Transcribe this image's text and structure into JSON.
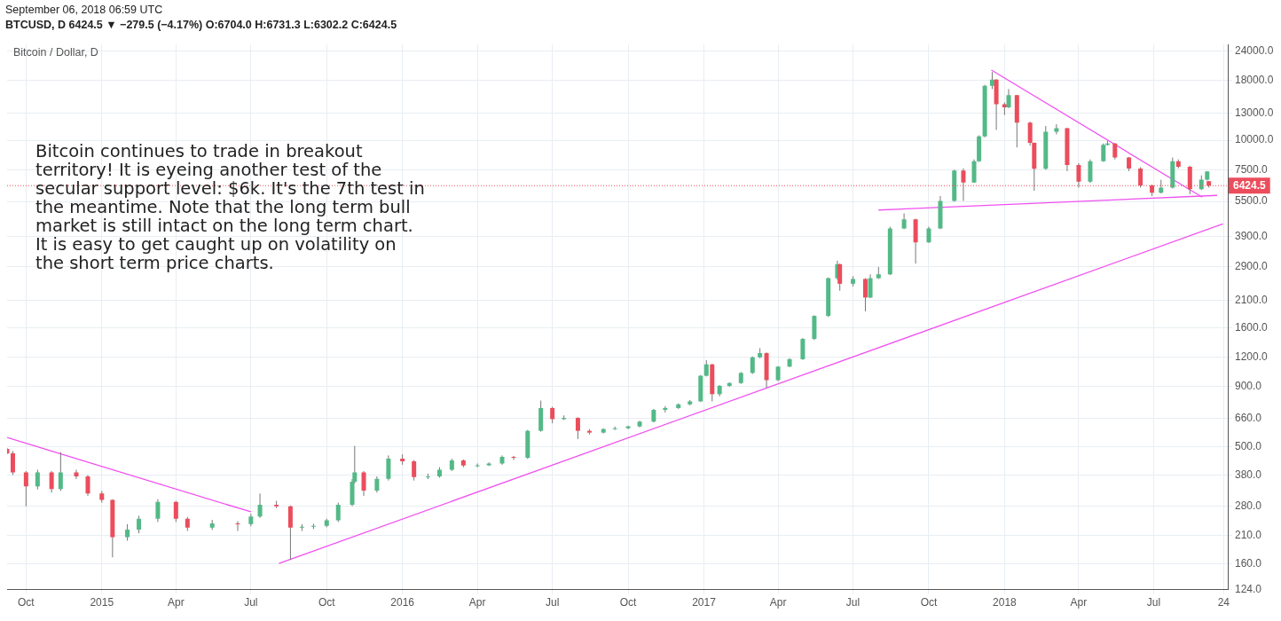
{
  "chart_data": {
    "type": "candlestick",
    "title": "Bitcoin / Dollar, D",
    "subtitle": "September 06, 2018 06:59 UTC",
    "annotations": [
      "BTCUSD, D  6424.5 ▼ −279.5 (−4.17%) O:6704.0 H:6731.3 L:6302.2 C:6424.5",
      "Bitcoin continues to trade in breakout territory! It is eyeing another test of the secular support level: $6k. It's the 7th test in the meantime. Note that the long term bull market is still intact on the long term chart. It is easy to get caught up on volatility on the short term price charts."
    ],
    "log": "y",
    "grid": true,
    "legend": false,
    "xlim": [
      "2014-09-08",
      "2018-09-29"
    ],
    "xticks": [
      {
        "value": "2014-10-01",
        "label": "Oct"
      },
      {
        "value": "2015-01-01",
        "label": "2015"
      },
      {
        "value": "2015-04-01",
        "label": "Apr"
      },
      {
        "value": "2015-07-01",
        "label": "Jul"
      },
      {
        "value": "2015-10-01",
        "label": "Oct"
      },
      {
        "value": "2016-01-01",
        "label": "2016"
      },
      {
        "value": "2016-04-01",
        "label": "Apr"
      },
      {
        "value": "2016-07-01",
        "label": "Jul"
      },
      {
        "value": "2016-10-01",
        "label": "Oct"
      },
      {
        "value": "2017-01-01",
        "label": "2017"
      },
      {
        "value": "2017-04-01",
        "label": "Apr"
      },
      {
        "value": "2017-07-01",
        "label": "Jul"
      },
      {
        "value": "2017-10-01",
        "label": "Oct"
      },
      {
        "value": "2018-01-01",
        "label": "2018"
      },
      {
        "value": "2018-04-01",
        "label": "Apr"
      },
      {
        "value": "2018-07-01",
        "label": "Jul"
      },
      {
        "value": "2018-09-24",
        "label": "24"
      }
    ],
    "ylim": [
      124,
      25500
    ],
    "yticks": [
      {
        "value": 124,
        "label": "124.0"
      },
      {
        "value": 160,
        "label": "160.0"
      },
      {
        "value": 210,
        "label": "210.0"
      },
      {
        "value": 280,
        "label": "280.0"
      },
      {
        "value": 380,
        "label": "380.0"
      },
      {
        "value": 500,
        "label": "500.0"
      },
      {
        "value": 660,
        "label": "660.0"
      },
      {
        "value": 900,
        "label": "900.0"
      },
      {
        "value": 1200,
        "label": "1200.0"
      },
      {
        "value": 1600,
        "label": "1600.0"
      },
      {
        "value": 2100,
        "label": "2100.0"
      },
      {
        "value": 2900,
        "label": "2900.0"
      },
      {
        "value": 3900,
        "label": "3900.0"
      },
      {
        "value": 5500,
        "label": "5500.0"
      },
      {
        "value": 7500,
        "label": "7500.0"
      },
      {
        "value": 10000,
        "label": "10000.0"
      },
      {
        "value": 13000,
        "label": "13000.0"
      },
      {
        "value": 18000,
        "label": "18000.0"
      },
      {
        "value": 24000,
        "label": "24000.0"
      }
    ],
    "ref_lines": [
      {
        "axis": "y",
        "value": 6424.5,
        "label": "6424.5",
        "color": "#eb4d5c",
        "line_style": "dotted"
      }
    ],
    "x": [
      "2014-09-08",
      "2014-09-15",
      "2014-10-01",
      "2014-10-15",
      "2014-11-01",
      "2014-11-12",
      "2014-12-01",
      "2014-12-15",
      "2015-01-01",
      "2015-01-14",
      "2015-02-01",
      "2015-02-15",
      "2015-03-10",
      "2015-04-01",
      "2015-04-15",
      "2015-05-15",
      "2015-06-15",
      "2015-07-01",
      "2015-07-12",
      "2015-08-01",
      "2015-08-18",
      "2015-09-01",
      "2015-09-15",
      "2015-10-01",
      "2015-10-15",
      "2015-11-01",
      "2015-11-04",
      "2015-11-15",
      "2015-12-01",
      "2015-12-15",
      "2016-01-01",
      "2016-01-15",
      "2016-02-01",
      "2016-02-15",
      "2016-03-01",
      "2016-03-15",
      "2016-04-01",
      "2016-04-15",
      "2016-05-01",
      "2016-05-15",
      "2016-06-01",
      "2016-06-17",
      "2016-07-01",
      "2016-07-15",
      "2016-08-01",
      "2016-08-15",
      "2016-09-01",
      "2016-09-15",
      "2016-10-01",
      "2016-10-15",
      "2016-11-01",
      "2016-11-15",
      "2016-12-01",
      "2016-12-15",
      "2016-12-28",
      "2017-01-04",
      "2017-01-11",
      "2017-01-20",
      "2017-02-01",
      "2017-02-15",
      "2017-03-01",
      "2017-03-10",
      "2017-03-18",
      "2017-04-01",
      "2017-04-15",
      "2017-05-01",
      "2017-05-15",
      "2017-06-01",
      "2017-06-12",
      "2017-06-15",
      "2017-07-01",
      "2017-07-16",
      "2017-07-22",
      "2017-08-01",
      "2017-08-15",
      "2017-09-01",
      "2017-09-15",
      "2017-10-01",
      "2017-10-15",
      "2017-11-01",
      "2017-11-12",
      "2017-11-25",
      "2017-12-01",
      "2017-12-08",
      "2017-12-17",
      "2017-12-22",
      "2018-01-01",
      "2018-01-06",
      "2018-01-16",
      "2018-02-01",
      "2018-02-06",
      "2018-02-20",
      "2018-03-05",
      "2018-03-18",
      "2018-04-01",
      "2018-04-15",
      "2018-05-01",
      "2018-05-06",
      "2018-05-15",
      "2018-06-01",
      "2018-06-15",
      "2018-06-29",
      "2018-07-10",
      "2018-07-24",
      "2018-07-31",
      "2018-08-14",
      "2018-08-28",
      "2018-09-04",
      "2018-09-06"
    ],
    "ohlc": [
      [
        490,
        495,
        465,
        470
      ],
      [
        470,
        480,
        380,
        390
      ],
      [
        390,
        395,
        280,
        340
      ],
      [
        340,
        400,
        330,
        390
      ],
      [
        390,
        395,
        320,
        331
      ],
      [
        331,
        475,
        325,
        390
      ],
      [
        390,
        400,
        365,
        375
      ],
      [
        375,
        380,
        310,
        317
      ],
      [
        317,
        325,
        290,
        298
      ],
      [
        298,
        300,
        170,
        207
      ],
      [
        207,
        235,
        200,
        223
      ],
      [
        223,
        255,
        215,
        248
      ],
      [
        248,
        300,
        240,
        292
      ],
      [
        292,
        295,
        240,
        248
      ],
      [
        248,
        252,
        220,
        227
      ],
      [
        227,
        245,
        222,
        237
      ],
      [
        237,
        242,
        220,
        235
      ],
      [
        235,
        260,
        230,
        253
      ],
      [
        253,
        317,
        250,
        284
      ],
      [
        284,
        295,
        275,
        280
      ],
      [
        280,
        282,
        166,
        227
      ],
      [
        227,
        235,
        220,
        229
      ],
      [
        229,
        236,
        224,
        231
      ],
      [
        231,
        248,
        228,
        244
      ],
      [
        244,
        290,
        240,
        284
      ],
      [
        284,
        365,
        280,
        356
      ],
      [
        356,
        505,
        350,
        390
      ],
      [
        390,
        395,
        310,
        326
      ],
      [
        326,
        375,
        320,
        366
      ],
      [
        366,
        460,
        360,
        446
      ],
      [
        446,
        465,
        420,
        434
      ],
      [
        434,
        440,
        360,
        372
      ],
      [
        372,
        385,
        365,
        375
      ],
      [
        375,
        410,
        370,
        400
      ],
      [
        400,
        445,
        395,
        438
      ],
      [
        438,
        442,
        410,
        417
      ],
      [
        417,
        425,
        410,
        418
      ],
      [
        418,
        430,
        415,
        425
      ],
      [
        425,
        460,
        420,
        454
      ],
      [
        454,
        458,
        440,
        450
      ],
      [
        450,
        590,
        445,
        585
      ],
      [
        585,
        786,
        580,
        731
      ],
      [
        731,
        740,
        630,
        656
      ],
      [
        656,
        680,
        650,
        664
      ],
      [
        664,
        668,
        540,
        585
      ],
      [
        585,
        595,
        565,
        575
      ],
      [
        575,
        600,
        570,
        595
      ],
      [
        595,
        610,
        590,
        600
      ],
      [
        600,
        615,
        595,
        611
      ],
      [
        611,
        645,
        605,
        640
      ],
      [
        640,
        725,
        635,
        718
      ],
      [
        718,
        745,
        700,
        731
      ],
      [
        731,
        765,
        725,
        758
      ],
      [
        758,
        790,
        750,
        780
      ],
      [
        780,
        1010,
        775,
        1002
      ],
      [
        1002,
        1167,
        995,
        1120
      ],
      [
        1120,
        1125,
        780,
        837
      ],
      [
        837,
        915,
        820,
        908
      ],
      [
        908,
        940,
        900,
        933
      ],
      [
        933,
        1040,
        925,
        1030
      ],
      [
        1030,
        1210,
        1020,
        1200
      ],
      [
        1200,
        1312,
        1190,
        1250
      ],
      [
        1250,
        1260,
        891,
        960
      ],
      [
        960,
        1100,
        950,
        1096
      ],
      [
        1096,
        1190,
        1090,
        1178
      ],
      [
        1178,
        1450,
        1170,
        1436
      ],
      [
        1436,
        1810,
        1420,
        1798
      ],
      [
        1798,
        2620,
        1780,
        2600
      ],
      [
        2600,
        3083,
        2560,
        2980
      ],
      [
        2980,
        3000,
        2300,
        2462
      ],
      [
        2462,
        2650,
        2400,
        2580
      ],
      [
        2580,
        2600,
        1880,
        2152
      ],
      [
        2152,
        2700,
        2140,
        2600
      ],
      [
        2600,
        2900,
        2580,
        2700
      ],
      [
        2700,
        4300,
        2680,
        4226
      ],
      [
        4226,
        4900,
        4200,
        4624
      ],
      [
        4624,
        4650,
        3000,
        3690
      ],
      [
        3690,
        4300,
        3670,
        4226
      ],
      [
        4226,
        5800,
        4200,
        5530
      ],
      [
        5530,
        7500,
        5500,
        7447
      ],
      [
        7447,
        7600,
        5530,
        6622
      ],
      [
        6622,
        8300,
        6600,
        8150
      ],
      [
        8150,
        10500,
        8100,
        10390
      ],
      [
        10390,
        17200,
        10300,
        17030
      ],
      [
        17030,
        19500,
        16500,
        18100
      ],
      [
        18100,
        18200,
        11070,
        14230
      ],
      [
        14230,
        14500,
        12800,
        13800
      ],
      [
        13800,
        16500,
        13700,
        15560
      ],
      [
        15560,
        15600,
        9330,
        11890
      ],
      [
        11890,
        12000,
        9500,
        9750
      ],
      [
        9750,
        9800,
        6110,
        7580
      ],
      [
        7580,
        11500,
        7500,
        10870
      ],
      [
        10870,
        11700,
        10600,
        11270
      ],
      [
        11270,
        11300,
        7400,
        7860
      ],
      [
        7860,
        8000,
        6300,
        6680
      ],
      [
        6680,
        8300,
        6600,
        8150
      ],
      [
        8150,
        9700,
        8100,
        9580
      ],
      [
        9580,
        9930,
        9500,
        9700
      ],
      [
        9700,
        9750,
        8300,
        8450
      ],
      [
        8450,
        8500,
        7400,
        7590
      ],
      [
        7590,
        7700,
        6300,
        6440
      ],
      [
        6440,
        6500,
        5800,
        5990
      ],
      [
        5990,
        6800,
        5950,
        6300
      ],
      [
        6300,
        8450,
        6250,
        8150
      ],
      [
        8150,
        8300,
        7600,
        7730
      ],
      [
        7730,
        7800,
        5900,
        6200
      ],
      [
        6200,
        7100,
        6150,
        6810
      ],
      [
        6810,
        7400,
        6750,
        7380
      ],
      [
        6704,
        6731.3,
        6302.2,
        6424.5
      ]
    ],
    "colors": [
      "#eb4d5c",
      "#eb4d5c",
      "#eb4d5c",
      "#53b987",
      "#eb4d5c",
      "#53b987",
      "#eb4d5c",
      "#eb4d5c",
      "#eb4d5c",
      "#eb4d5c",
      "#53b987",
      "#53b987",
      "#53b987",
      "#eb4d5c",
      "#eb4d5c",
      "#53b987",
      "#eb4d5c",
      "#53b987",
      "#53b987",
      "#eb4d5c",
      "#eb4d5c",
      "#53b987",
      "#53b987",
      "#53b987",
      "#53b987",
      "#53b987",
      "#53b987",
      "#eb4d5c",
      "#53b987",
      "#53b987",
      "#eb4d5c",
      "#eb4d5c",
      "#53b987",
      "#53b987",
      "#53b987",
      "#eb4d5c",
      "#53b987",
      "#53b987",
      "#53b987",
      "#eb4d5c",
      "#53b987",
      "#53b987",
      "#eb4d5c",
      "#53b987",
      "#eb4d5c",
      "#eb4d5c",
      "#53b987",
      "#53b987",
      "#53b987",
      "#53b987",
      "#53b987",
      "#53b987",
      "#53b987",
      "#53b987",
      "#53b987",
      "#53b987",
      "#eb4d5c",
      "#53b987",
      "#53b987",
      "#53b987",
      "#53b987",
      "#53b987",
      "#eb4d5c",
      "#53b987",
      "#53b987",
      "#53b987",
      "#53b987",
      "#53b987",
      "#53b987",
      "#eb4d5c",
      "#53b987",
      "#eb4d5c",
      "#53b987",
      "#53b987",
      "#53b987",
      "#53b987",
      "#eb4d5c",
      "#53b987",
      "#53b987",
      "#53b987",
      "#eb4d5c",
      "#53b987",
      "#53b987",
      "#53b987",
      "#53b987",
      "#eb4d5c",
      "#eb4d5c",
      "#53b987",
      "#eb4d5c",
      "#eb4d5c",
      "#eb4d5c",
      "#53b987",
      "#53b987",
      "#eb4d5c",
      "#eb4d5c",
      "#53b987",
      "#53b987",
      "#53b987",
      "#eb4d5c",
      "#eb4d5c",
      "#eb4d5c",
      "#eb4d5c",
      "#53b987",
      "#53b987",
      "#eb4d5c",
      "#eb4d5c",
      "#53b987",
      "#53b987",
      "#eb4d5c"
    ],
    "series": [
      {
        "type": "line",
        "color": "#f050f0",
        "x": [
          "2014-09-08",
          "2015-07-01"
        ],
        "values": [
          548,
          265
        ]
      },
      {
        "type": "line",
        "color": "#f050f0",
        "x": [
          "2015-08-04",
          "2018-09-23"
        ],
        "values": [
          160,
          4420
        ]
      },
      {
        "type": "line",
        "color": "#f050f0",
        "x": [
          "2017-08-01",
          "2018-09-16"
        ],
        "values": [
          5060,
          5840
        ]
      },
      {
        "type": "line",
        "color": "#f050f0",
        "x": [
          "2017-12-16",
          "2018-08-29"
        ],
        "values": [
          19860,
          5740
        ]
      }
    ]
  }
}
